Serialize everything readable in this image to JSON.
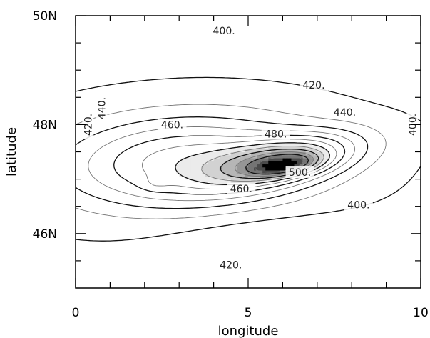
{
  "chart_data": {
    "type": "contour",
    "xlabel": "longitude",
    "ylabel": "latitude",
    "xlim": [
      0,
      10
    ],
    "ylim": [
      45.0,
      50.0
    ],
    "x_ticks": [
      0,
      5,
      10
    ],
    "x_tick_labels": [
      "0",
      "5",
      "10"
    ],
    "y_ticks": [
      46,
      48,
      50
    ],
    "y_tick_labels": [
      "46N",
      "48N",
      "50N"
    ],
    "contour_levels": [
      400,
      410,
      420,
      430,
      440,
      450,
      460,
      470,
      480,
      490,
      500,
      510
    ],
    "labeled_contours": [
      {
        "text": "400.",
        "x": 4.3,
        "y": 49.7
      },
      {
        "text": "420.",
        "x": 6.9,
        "y": 48.7
      },
      {
        "text": "440.",
        "x": 7.8,
        "y": 48.2
      },
      {
        "text": "460.",
        "x": 2.8,
        "y": 47.97
      },
      {
        "text": "480.",
        "x": 5.8,
        "y": 47.8
      },
      {
        "text": "500.",
        "x": 6.5,
        "y": 47.1
      },
      {
        "text": "460.",
        "x": 4.8,
        "y": 46.8
      },
      {
        "text": "420.",
        "x": 4.5,
        "y": 45.4
      },
      {
        "text": "400.",
        "x": 8.2,
        "y": 46.5
      },
      {
        "text": "400.",
        "x": 9.8,
        "y": 48.0
      },
      {
        "text": "420.",
        "x": 0.4,
        "y": 48.0
      },
      {
        "text": "440.",
        "x": 0.8,
        "y": 48.3
      }
    ],
    "fill_threshold": 460,
    "fill_colors": [
      "#ebebeb",
      "#d2d2d2",
      "#b6b6b6",
      "#969696",
      "#747474",
      "#4a4a4a",
      "#000000"
    ],
    "grid": false
  }
}
